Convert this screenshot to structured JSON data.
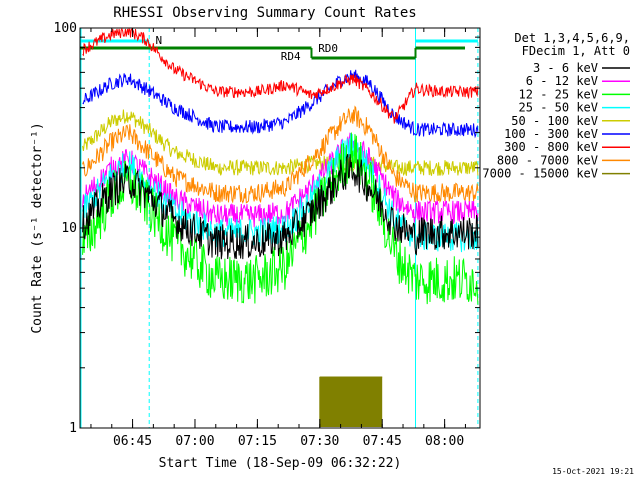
{
  "chart_data": {
    "type": "line",
    "title": "RHESSI Observing Summary Count Rates",
    "xlabel": "Start Time (18-Sep-09 06:32:22)",
    "ylabel": "Count Rate (s⁻¹ detector⁻¹)",
    "yscale": "log",
    "ylim": [
      1,
      100
    ],
    "xlim": [
      "06:32:22",
      "08:08:30"
    ],
    "grid": false,
    "x_ticks": [
      "06:45",
      "07:00",
      "07:15",
      "07:30",
      "07:45",
      "08:00"
    ],
    "y_ticks": [
      "1",
      "10",
      "100"
    ],
    "legend": {
      "placement": "right",
      "header": [
        "Det 1,3,4,5,6,9,",
        "FDecim 1, Att 0"
      ]
    },
    "series": [
      {
        "name": "3 - 6 keV",
        "color": "#000000",
        "x": [
          "06:33",
          "06:40",
          "06:44",
          "06:48",
          "06:55",
          "07:05",
          "07:15",
          "07:22",
          "07:28",
          "07:35",
          "07:38",
          "07:42",
          "07:48",
          "07:53",
          "07:55",
          "08:00",
          "08:05",
          "08:08"
        ],
        "values": [
          10.5,
          15.5,
          17.5,
          15,
          11,
          8.5,
          8.5,
          9,
          12,
          18,
          20,
          16,
          10.5,
          9,
          9.5,
          9.5,
          9.5,
          9.5
        ]
      },
      {
        "name": "6 - 12 keV",
        "color": "#ff00ff",
        "x": [
          "06:33",
          "06:40",
          "06:44",
          "06:48",
          "06:55",
          "07:05",
          "07:15",
          "07:22",
          "07:28",
          "07:35",
          "07:38",
          "07:42",
          "07:48",
          "07:53",
          "07:55",
          "08:00",
          "08:05",
          "08:08"
        ],
        "values": [
          14,
          20,
          22,
          19,
          14,
          11.5,
          11.5,
          12,
          16,
          24,
          27,
          22,
          14,
          12,
          12,
          12,
          12,
          12
        ]
      },
      {
        "name": "12 - 25 keV",
        "color": "#00ff00",
        "x": [
          "06:33",
          "06:40",
          "06:44",
          "06:48",
          "06:55",
          "07:05",
          "07:15",
          "07:22",
          "07:28",
          "07:35",
          "07:38",
          "07:42",
          "07:48",
          "07:53",
          "07:55",
          "08:00",
          "08:05",
          "08:08"
        ],
        "values": [
          8,
          14.5,
          17,
          13.5,
          8.5,
          5.5,
          5.5,
          6.5,
          11,
          20,
          24,
          17,
          7.5,
          5.5,
          5.5,
          5.5,
          5.5,
          5.5
        ]
      },
      {
        "name": "25 - 50 keV",
        "color": "#00ffff",
        "x": [
          "06:33",
          "06:40",
          "06:44",
          "06:48",
          "06:55",
          "07:05",
          "07:15",
          "07:22",
          "07:28",
          "07:35",
          "07:38",
          "07:42",
          "07:48",
          "07:53",
          "07:55",
          "08:00",
          "08:05",
          "08:08"
        ],
        "values": [
          12,
          18.5,
          21,
          17,
          12,
          9.5,
          9.5,
          10,
          14,
          23,
          26,
          20,
          11,
          9,
          9,
          9,
          9,
          9
        ]
      },
      {
        "name": "50 - 100 keV",
        "color": "#cccc00",
        "x": [
          "06:33",
          "06:40",
          "06:44",
          "06:48",
          "06:55",
          "07:05",
          "07:15",
          "07:22",
          "07:28",
          "07:35",
          "07:38",
          "07:42",
          "07:48",
          "07:53",
          "07:55",
          "08:00",
          "08:05",
          "08:08"
        ],
        "values": [
          25,
          34,
          37,
          32,
          24,
          20,
          20,
          20,
          21,
          21,
          21,
          21,
          20,
          20,
          20,
          20,
          20,
          20
        ]
      },
      {
        "name": "100 - 300 keV",
        "color": "#0000ff",
        "x": [
          "06:33",
          "06:40",
          "06:44",
          "06:48",
          "06:55",
          "07:05",
          "07:15",
          "07:22",
          "07:28",
          "07:35",
          "07:38",
          "07:42",
          "07:48",
          "07:53",
          "07:55",
          "08:00",
          "08:05",
          "08:08"
        ],
        "values": [
          43,
          53,
          56,
          50,
          40,
          32,
          32,
          34,
          42,
          55,
          58,
          53,
          36,
          31,
          31,
          31,
          31,
          31
        ]
      },
      {
        "name": "300 - 800 keV",
        "color": "#ff0000",
        "x": [
          "06:33",
          "06:40",
          "06:44",
          "06:48",
          "06:55",
          "07:05",
          "07:15",
          "07:22",
          "07:28",
          "07:35",
          "07:38",
          "07:42",
          "07:48",
          "07:53",
          "07:55",
          "08:00",
          "08:05",
          "08:08"
        ],
        "values": [
          78,
          93,
          97,
          88,
          62,
          48,
          48,
          52,
          46,
          53,
          56,
          48,
          35,
          50,
          49,
          48,
          48,
          48
        ]
      },
      {
        "name": "800 - 7000 keV",
        "color": "#ff8800",
        "x": [
          "06:33",
          "06:40",
          "06:44",
          "06:48",
          "06:55",
          "07:05",
          "07:15",
          "07:22",
          "07:28",
          "07:35",
          "07:38",
          "07:42",
          "07:48",
          "07:53",
          "07:55",
          "08:00",
          "08:05",
          "08:08"
        ],
        "values": [
          19,
          27,
          30,
          25,
          18,
          15,
          15,
          16,
          22,
          33,
          37,
          31,
          18,
          15,
          15,
          15,
          15,
          15
        ]
      },
      {
        "name": "7000 - 15000 keV",
        "color": "#808000",
        "x": [
          "07:30",
          "07:45"
        ],
        "values": [
          1.8,
          1.8
        ]
      }
    ],
    "annotations": [
      {
        "text": "N",
        "color": "#00ffff"
      },
      {
        "text": "RD4",
        "color": "#008000"
      },
      {
        "text": "RD0",
        "color": "#008000"
      }
    ],
    "footer_date": "15-Oct-2021 19:21"
  }
}
